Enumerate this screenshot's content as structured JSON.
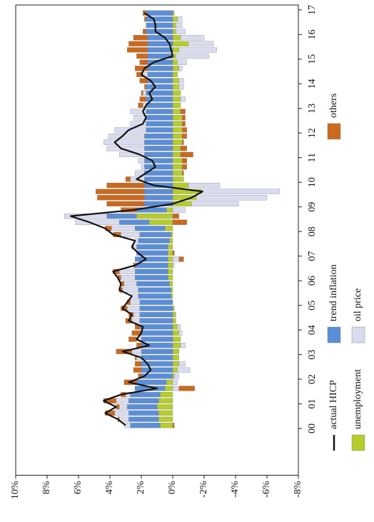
{
  "chart_data": {
    "type": "bar",
    "stacked": true,
    "x": [
      0.125,
      0.375,
      0.625,
      0.875,
      1.125,
      1.375,
      1.625,
      1.875,
      2.125,
      2.375,
      2.625,
      2.875,
      3.125,
      3.375,
      3.625,
      3.875,
      4.125,
      4.375,
      4.625,
      4.875,
      5.125,
      5.375,
      5.625,
      5.875,
      6.125,
      6.375,
      6.625,
      6.875,
      7.125,
      7.375,
      7.625,
      7.875,
      8.125,
      8.375,
      8.625,
      8.875,
      9.125,
      9.375,
      9.625,
      9.875,
      10.125,
      10.375,
      10.625,
      10.875,
      11.125,
      11.375,
      11.625,
      11.875,
      12.125,
      12.375,
      12.625,
      12.875,
      13.125,
      13.375,
      13.625,
      13.875,
      14.125,
      14.375,
      14.625,
      14.875,
      15.125,
      15.375,
      15.625,
      15.875,
      16.125,
      16.375,
      16.625,
      16.875
    ],
    "xlim": [
      -1.9,
      17.2
    ],
    "xticks": [
      {
        "value": 0,
        "label": "00"
      },
      {
        "value": 1,
        "label": "01"
      },
      {
        "value": 2,
        "label": "02"
      },
      {
        "value": 3,
        "label": "03"
      },
      {
        "value": 4,
        "label": "04"
      },
      {
        "value": 5,
        "label": "05"
      },
      {
        "value": 6,
        "label": "06"
      },
      {
        "value": 7,
        "label": "07"
      },
      {
        "value": 8,
        "label": "08"
      },
      {
        "value": 9,
        "label": "09"
      },
      {
        "value": 10,
        "label": "10"
      },
      {
        "value": 11,
        "label": "11"
      },
      {
        "value": 12,
        "label": "12"
      },
      {
        "value": 13,
        "label": "13"
      },
      {
        "value": 14,
        "label": "14"
      },
      {
        "value": 15,
        "label": "15"
      },
      {
        "value": 16,
        "label": "16"
      },
      {
        "value": 17,
        "label": "17"
      }
    ],
    "ylim": [
      -8,
      10
    ],
    "yticks": [
      {
        "value": 10,
        "label": "10%"
      },
      {
        "value": 8,
        "label": "8%"
      },
      {
        "value": 6,
        "label": "6%"
      },
      {
        "value": 4,
        "label": "4%"
      },
      {
        "value": 2,
        "label": "2%"
      },
      {
        "value": 0,
        "label": "0%"
      },
      {
        "value": -2,
        "label": "-2%"
      },
      {
        "value": -4,
        "label": "-4%"
      },
      {
        "value": -6,
        "label": "-6%"
      },
      {
        "value": -8,
        "label": "-8%"
      }
    ],
    "grid": false,
    "series": [
      {
        "name": "actual HICP",
        "type": "line",
        "color": "#111111",
        "values": [
          3.0,
          3.5,
          4.3,
          3.6,
          4.4,
          3.3,
          1.0,
          2.8,
          1.8,
          1.4,
          1.6,
          2.0,
          3.2,
          1.5,
          2.3,
          2.0,
          1.9,
          2.8,
          2.6,
          3.2,
          2.9,
          2.6,
          3.4,
          3.3,
          3.5,
          3.8,
          2.4,
          1.7,
          2.2,
          2.6,
          2.4,
          3.8,
          4.3,
          5.3,
          6.5,
          2.5,
          0.0,
          -1.2,
          -1.9,
          1.2,
          2.3,
          1.7,
          1.1,
          1.3,
          2.1,
          3.3,
          3.7,
          3.2,
          2.8,
          1.9,
          1.7,
          1.9,
          1.7,
          1.3,
          1.5,
          1.1,
          1.4,
          2.0,
          1.8,
          1.2,
          0.0,
          0.1,
          0.2,
          0.5,
          1.1,
          1.1,
          1.2,
          1.8
        ]
      },
      {
        "name": "unemployment",
        "type": "bar",
        "color": "#b6cc2c",
        "values": [
          0.8,
          0.9,
          0.9,
          1.0,
          0.9,
          0.8,
          0.5,
          0.4,
          -0.1,
          -0.3,
          -0.4,
          -0.4,
          -0.4,
          -0.5,
          -0.5,
          -0.4,
          -0.3,
          -0.2,
          -0.2,
          -0.1,
          0.0,
          0.1,
          0.1,
          0.2,
          0.3,
          0.3,
          0.3,
          0.3,
          0.3,
          0.3,
          0.2,
          0.1,
          0.5,
          1.5,
          2.3,
          0.4,
          -1.2,
          -1.5,
          -1.8,
          -1.0,
          -0.7,
          -0.6,
          -0.6,
          -0.6,
          -0.5,
          -0.5,
          -0.6,
          -0.6,
          -0.6,
          -0.6,
          -0.6,
          -0.5,
          -0.5,
          -0.5,
          -0.5,
          -0.4,
          -0.4,
          -0.3,
          -0.4,
          -0.3,
          -0.2,
          -0.4,
          -1.0,
          -0.5,
          -0.2,
          -0.2,
          -0.3,
          -0.1
        ]
      },
      {
        "name": "trend inflation",
        "type": "bar",
        "color": "#5b8ed6",
        "values": [
          1.9,
          1.9,
          1.9,
          1.9,
          1.9,
          1.9,
          1.9,
          1.9,
          2.0,
          2.0,
          2.0,
          2.0,
          2.0,
          2.0,
          2.0,
          2.0,
          2.1,
          2.1,
          2.1,
          2.1,
          2.1,
          2.1,
          2.1,
          2.1,
          2.1,
          2.1,
          2.1,
          2.1,
          2.0,
          2.0,
          2.0,
          2.0,
          1.9,
          1.9,
          1.9,
          1.9,
          1.8,
          1.8,
          1.8,
          1.8,
          1.8,
          1.8,
          1.8,
          1.8,
          1.8,
          1.8,
          1.8,
          1.8,
          1.7,
          1.7,
          1.7,
          1.7,
          1.7,
          1.7,
          1.7,
          1.7,
          1.6,
          1.6,
          1.6,
          1.6,
          1.6,
          1.6,
          1.6,
          1.6,
          1.7,
          1.7,
          1.7,
          1.7
        ]
      },
      {
        "name": "oil price",
        "type": "bar",
        "color": "#d9dcef",
        "values": [
          0.4,
          0.6,
          0.9,
          0.5,
          0.8,
          0.3,
          -0.4,
          -0.3,
          -0.3,
          -0.8,
          -0.4,
          0.3,
          0.6,
          -0.3,
          0.3,
          -0.2,
          -0.2,
          0.5,
          0.4,
          0.8,
          0.6,
          0.4,
          1.0,
          0.8,
          0.9,
          1.0,
          -0.1,
          -0.4,
          0.0,
          0.2,
          0.2,
          1.2,
          1.5,
          2.8,
          2.7,
          -0.8,
          -3.0,
          -4.5,
          -5.0,
          -2.0,
          0.9,
          0.6,
          0.2,
          0.4,
          1.6,
          2.4,
          2.6,
          2.3,
          2.0,
          1.0,
          0.8,
          1.0,
          0.2,
          -0.3,
          0.2,
          -0.3,
          -0.3,
          0.3,
          -0.2,
          -0.6,
          -2.1,
          -2.4,
          -1.6,
          -1.5,
          -0.6,
          -0.4,
          -0.3,
          0.0
        ]
      },
      {
        "name": "others",
        "type": "bar",
        "color": "#c96a1f",
        "values": [
          -0.1,
          0.1,
          0.6,
          0.2,
          0.8,
          0.3,
          -1.0,
          0.8,
          0.2,
          0.5,
          0.4,
          0.1,
          1.0,
          0.3,
          0.5,
          0.6,
          0.3,
          0.4,
          0.3,
          0.4,
          0.2,
          0.0,
          0.2,
          0.2,
          0.2,
          0.4,
          0.1,
          -0.3,
          -0.1,
          0.1,
          0.0,
          0.5,
          0.4,
          -0.9,
          -0.4,
          1.0,
          2.4,
          3.0,
          3.1,
          2.4,
          0.3,
          -0.1,
          -0.3,
          -0.3,
          -0.8,
          -0.4,
          -0.1,
          -0.3,
          -0.3,
          -0.2,
          -0.2,
          -0.3,
          0.3,
          0.4,
          0.1,
          0.1,
          0.5,
          0.4,
          0.8,
          0.5,
          0.7,
          1.3,
          1.2,
          0.9,
          0.2,
          0.0,
          0.1,
          0.2
        ]
      }
    ]
  }
}
